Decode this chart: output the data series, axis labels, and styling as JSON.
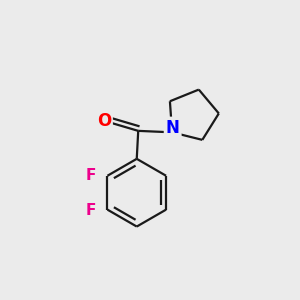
{
  "background_color": "#ebebeb",
  "bond_color": "#1a1a1a",
  "O_color": "#ff0000",
  "N_color": "#0000ff",
  "F_color": "#ed008c",
  "line_width": 1.6,
  "font_size_atoms": 11,
  "fig_width": 3.0,
  "fig_height": 3.0,
  "dpi": 100,
  "xlim": [
    0.0,
    1.0
  ],
  "ylim": [
    0.0,
    1.0
  ]
}
